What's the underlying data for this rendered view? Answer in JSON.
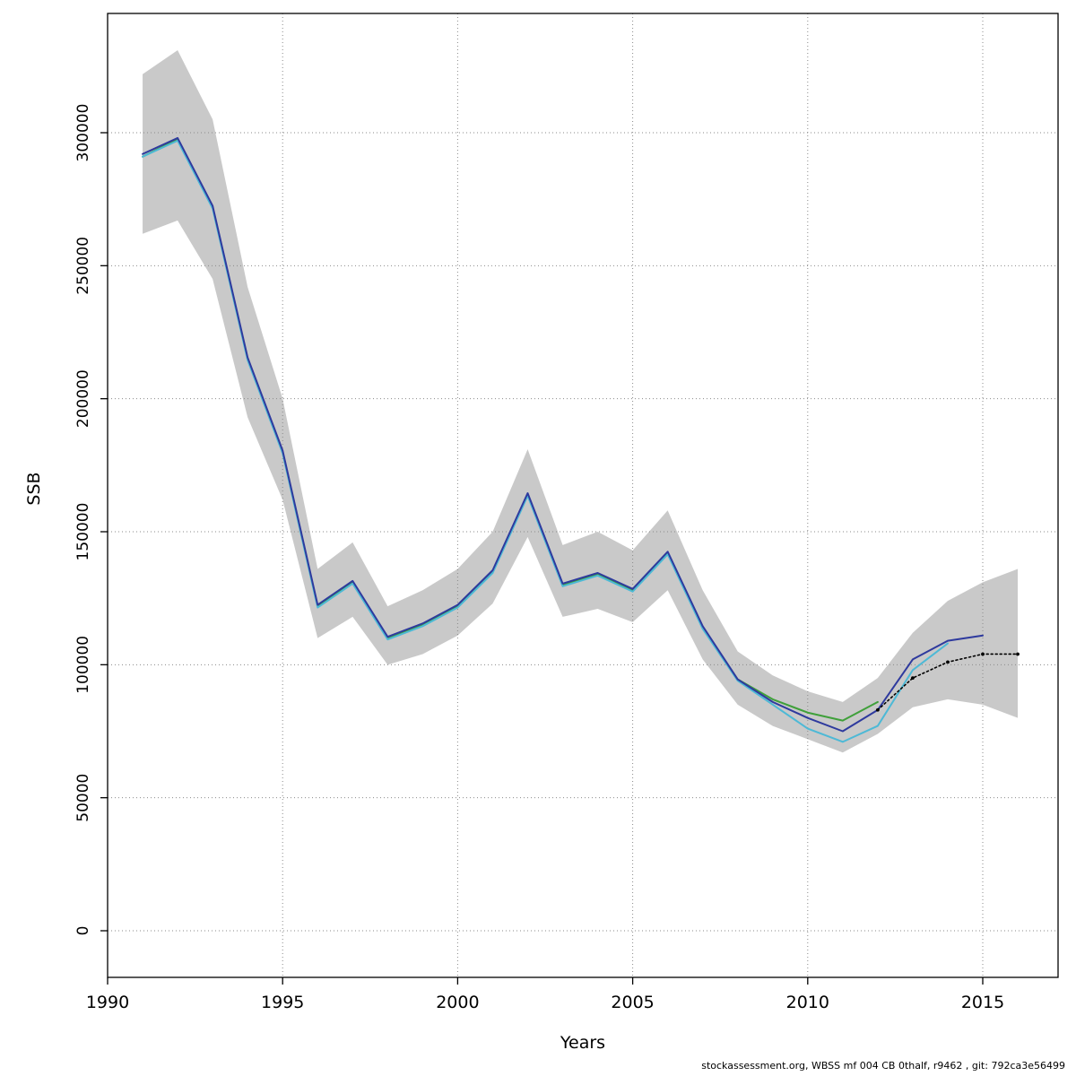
{
  "footer": {
    "caption": "stockassessment.org, WBSS mf 004 CB 0thalf, r9462 , git: 792ca3e56499"
  },
  "chart_data": {
    "type": "line",
    "title": "",
    "xlabel": "Years",
    "ylabel": "SSB",
    "xlim": [
      1990,
      2017
    ],
    "ylim": [
      0,
      340000
    ],
    "grid": true,
    "xticks": [
      1990,
      1995,
      2000,
      2005,
      2010,
      2015
    ],
    "yticks": [
      0,
      50000,
      100000,
      150000,
      200000,
      250000,
      300000
    ],
    "band": {
      "name": "confidence-band",
      "color": "#c9c9c9",
      "x": [
        1991,
        1992,
        1993,
        1994,
        1995,
        1996,
        1997,
        1998,
        1999,
        2000,
        2001,
        2002,
        2003,
        2004,
        2005,
        2006,
        2007,
        2008,
        2009,
        2010,
        2011,
        2012,
        2013,
        2014,
        2015,
        2016
      ],
      "upper": [
        322000,
        331000,
        305000,
        242000,
        200000,
        136000,
        146000,
        122000,
        128000,
        136000,
        150000,
        181000,
        145000,
        150000,
        143000,
        158000,
        128000,
        105000,
        96000,
        90000,
        86000,
        95000,
        112000,
        124000,
        131000,
        136000
      ],
      "lower": [
        262000,
        267000,
        245000,
        193000,
        162000,
        110000,
        118000,
        100000,
        104000,
        111000,
        123000,
        148000,
        118000,
        121000,
        116000,
        128000,
        102000,
        85000,
        77000,
        72000,
        67000,
        74000,
        84000,
        87000,
        85000,
        80000
      ]
    },
    "series": [
      {
        "name": "retro-run-green",
        "color": "#3fa03a",
        "style": "solid",
        "x": [
          1991,
          1992,
          1993,
          1994,
          1995,
          1996,
          1997,
          1998,
          1999,
          2000,
          2001,
          2002,
          2003,
          2004,
          2005,
          2006,
          2007,
          2008,
          2009,
          2010,
          2011,
          2012
        ],
        "values": [
          291000,
          297500,
          272000,
          215000,
          180000,
          122000,
          131000,
          110000,
          115000,
          122000,
          135000,
          164000,
          130000,
          134000,
          128000,
          142000,
          114000,
          94500,
          87000,
          82000,
          79000,
          86000
        ]
      },
      {
        "name": "retro-run-cyan",
        "color": "#4db9d6",
        "style": "solid",
        "x": [
          1991,
          1992,
          1993,
          1994,
          1995,
          1996,
          1997,
          1998,
          1999,
          2000,
          2001,
          2002,
          2003,
          2004,
          2005,
          2006,
          2007,
          2008,
          2009,
          2010,
          2011,
          2012,
          2013,
          2014
        ],
        "values": [
          291000,
          297000,
          271500,
          214500,
          179500,
          121500,
          130500,
          109500,
          114500,
          121500,
          134500,
          163500,
          129500,
          133500,
          127500,
          141500,
          113500,
          94000,
          85000,
          76000,
          71000,
          77000,
          98000,
          108000
        ]
      },
      {
        "name": "current-run-blue",
        "color": "#2e3a9e",
        "style": "solid",
        "x": [
          1991,
          1992,
          1993,
          1994,
          1995,
          1996,
          1997,
          1998,
          1999,
          2000,
          2001,
          2002,
          2003,
          2004,
          2005,
          2006,
          2007,
          2008,
          2009,
          2010,
          2011,
          2012,
          2013,
          2014,
          2015
        ],
        "values": [
          292000,
          298000,
          272500,
          215500,
          180500,
          122500,
          131500,
          110500,
          115500,
          122500,
          135500,
          164500,
          130500,
          134500,
          128500,
          142500,
          114500,
          94500,
          86000,
          80000,
          75000,
          83000,
          102000,
          109000,
          111000
        ]
      },
      {
        "name": "forecast-median",
        "color": "#000000",
        "style": "dotted",
        "x": [
          2012,
          2013,
          2014,
          2015,
          2016
        ],
        "values": [
          83000,
          95000,
          101000,
          104000,
          104000
        ]
      }
    ]
  }
}
